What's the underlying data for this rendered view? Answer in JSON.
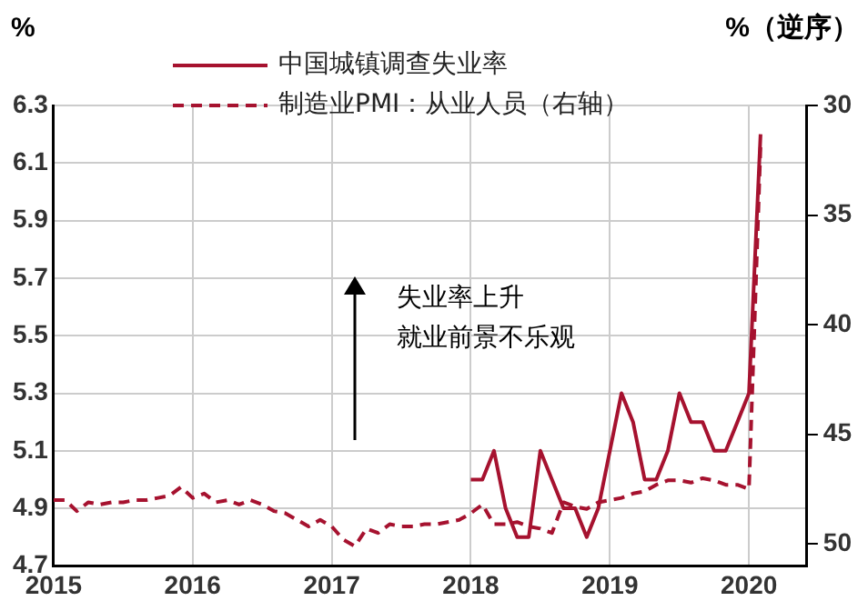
{
  "chart_data": {
    "type": "line",
    "ylabel": "%",
    "y2label": "%（逆序）",
    "series": [
      {
        "name": "中国城镇调查失业率",
        "color": "#a6122f",
        "line_style": "solid",
        "x": [
          "2018-01",
          "2018-02",
          "2018-03",
          "2018-04",
          "2018-05",
          "2018-06",
          "2018-07",
          "2018-08",
          "2018-09",
          "2018-10",
          "2018-11",
          "2018-12",
          "2019-01",
          "2019-02",
          "2019-03",
          "2019-04",
          "2019-05",
          "2019-06",
          "2019-07",
          "2019-08",
          "2019-09",
          "2019-10",
          "2019-11",
          "2019-12",
          "2020-01",
          "2020-02"
        ],
        "values": [
          5.0,
          5.0,
          5.1,
          4.9,
          4.8,
          4.8,
          5.1,
          5.0,
          4.9,
          4.9,
          4.8,
          4.9,
          5.1,
          5.3,
          5.2,
          5.0,
          5.0,
          5.1,
          5.3,
          5.2,
          5.2,
          5.1,
          5.1,
          5.2,
          5.3,
          6.2
        ]
      },
      {
        "name": "制造业PMI：从业人员（右轴）",
        "color": "#a6122f",
        "line_style": "dashed",
        "axis": "y2",
        "x": [
          "2015-01",
          "2015-02",
          "2015-03",
          "2015-04",
          "2015-05",
          "2015-06",
          "2015-07",
          "2015-08",
          "2015-09",
          "2015-10",
          "2015-11",
          "2015-12",
          "2016-01",
          "2016-02",
          "2016-03",
          "2016-04",
          "2016-05",
          "2016-06",
          "2016-07",
          "2016-08",
          "2016-09",
          "2016-10",
          "2016-11",
          "2016-12",
          "2017-01",
          "2017-02",
          "2017-03",
          "2017-04",
          "2017-05",
          "2017-06",
          "2017-07",
          "2017-08",
          "2017-09",
          "2017-10",
          "2017-11",
          "2017-12",
          "2018-01",
          "2018-02",
          "2018-03",
          "2018-04",
          "2018-05",
          "2018-06",
          "2018-07",
          "2018-08",
          "2018-09",
          "2018-10",
          "2018-11",
          "2018-12",
          "2019-01",
          "2019-02",
          "2019-03",
          "2019-04",
          "2019-05",
          "2019-06",
          "2019-07",
          "2019-08",
          "2019-09",
          "2019-10",
          "2019-11",
          "2019-12",
          "2020-01",
          "2020-02"
        ],
        "values": [
          48.0,
          48.0,
          48.5,
          48.1,
          48.2,
          48.1,
          48.1,
          48.0,
          48.0,
          47.9,
          47.8,
          47.4,
          47.9,
          47.7,
          48.1,
          48.0,
          48.2,
          48.0,
          48.2,
          48.5,
          48.6,
          48.9,
          49.2,
          48.9,
          49.2,
          49.8,
          50.1,
          49.3,
          49.5,
          49.1,
          49.2,
          49.2,
          49.1,
          49.1,
          49.0,
          48.9,
          48.6,
          48.2,
          49.1,
          49.1,
          49.0,
          49.2,
          49.3,
          49.5,
          48.1,
          48.3,
          48.4,
          48.1,
          48.0,
          47.9,
          47.7,
          47.6,
          47.3,
          47.1,
          47.1,
          47.2,
          47.0,
          47.1,
          47.3,
          47.3,
          47.5,
          31.8
        ]
      }
    ],
    "xlim": [
      "2015-01",
      "2020-06"
    ],
    "xticks": [
      "2015",
      "2016",
      "2017",
      "2018",
      "2019",
      "2020"
    ],
    "ylim": [
      4.7,
      6.3
    ],
    "yticks": [
      4.7,
      4.9,
      5.1,
      5.3,
      5.5,
      5.7,
      5.9,
      6.1,
      6.3
    ],
    "y2lim": [
      51,
      30
    ],
    "y2ticks": [
      30,
      35,
      40,
      45,
      50
    ],
    "annotations": [
      "失业率上升",
      "就业前景不乐观"
    ],
    "grid": true,
    "legend": "top",
    "marker": "none"
  }
}
